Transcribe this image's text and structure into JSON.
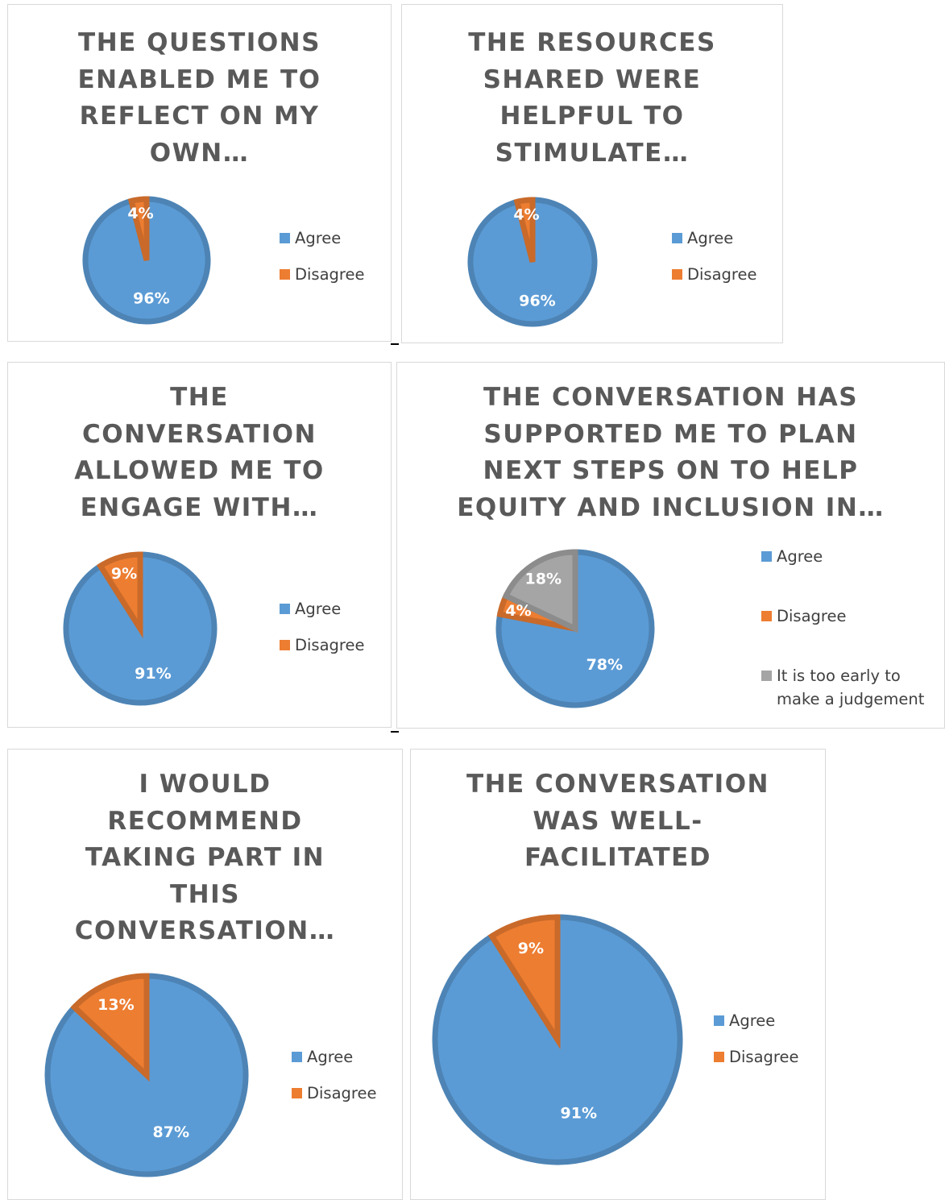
{
  "colors": {
    "agree": "#5b9bd5",
    "disagree": "#ed7d31",
    "too_early": "#a5a5a5"
  },
  "chart_data": [
    {
      "type": "pie",
      "title": "THE QUESTIONS\nENABLED ME TO\nREFLECT ON MY\nOWN…",
      "categories": [
        "Agree",
        "Disagree"
      ],
      "values": [
        96,
        4
      ],
      "data_labels": [
        "96%",
        "4%"
      ],
      "legend": "right"
    },
    {
      "type": "pie",
      "title": "THE RESOURCES\nSHARED WERE\nHELPFUL TO\nSTIMULATE…",
      "categories": [
        "Agree",
        "Disagree"
      ],
      "values": [
        96,
        4
      ],
      "data_labels": [
        "96%",
        "4%"
      ],
      "legend": "right"
    },
    {
      "type": "pie",
      "title": "THE\nCONVERSATION\nALLOWED ME TO\nENGAGE WITH…",
      "categories": [
        "Agree",
        "Disagree"
      ],
      "values": [
        91,
        9
      ],
      "data_labels": [
        "91%",
        "9%"
      ],
      "legend": "right"
    },
    {
      "type": "pie",
      "title": "THE CONVERSATION HAS\nSUPPORTED ME TO PLAN\nNEXT STEPS ON TO HELP\nEQUITY AND INCLUSION IN…",
      "categories": [
        "Agree",
        "Disagree",
        "It is too early to make a judgement"
      ],
      "values": [
        78,
        4,
        18
      ],
      "data_labels": [
        "78%",
        "4%",
        "18%"
      ],
      "legend": "right"
    },
    {
      "type": "pie",
      "title": "I WOULD\nRECOMMEND\nTAKING PART IN\nTHIS\nCONVERSATION…",
      "categories": [
        "Agree",
        "Disagree"
      ],
      "values": [
        87,
        13
      ],
      "data_labels": [
        "87%",
        "13%"
      ],
      "legend": "right"
    },
    {
      "type": "pie",
      "title": "THE CONVERSATION\nWAS WELL-\nFACILITATED",
      "categories": [
        "Agree",
        "Disagree"
      ],
      "values": [
        91,
        9
      ],
      "data_labels": [
        "91%",
        "9%"
      ],
      "legend": "right"
    }
  ]
}
